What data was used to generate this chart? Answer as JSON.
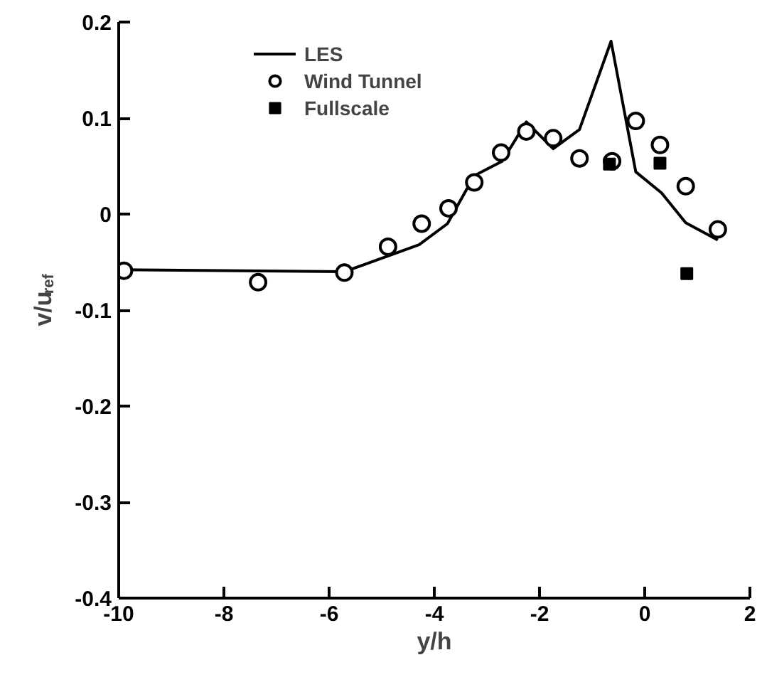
{
  "chart_data": {
    "type": "line",
    "xlabel": "y/h",
    "ylabel": "v/u$_{ref}$",
    "xlim": [
      -10,
      2
    ],
    "ylim": [
      -0.4,
      0.2
    ],
    "xticks": [
      -10,
      -8,
      -6,
      -4,
      -2,
      0,
      2
    ],
    "yticks": [
      -0.4,
      -0.3,
      -0.2,
      -0.1,
      0,
      0.1,
      0.2
    ],
    "grid": false,
    "legend": "top left",
    "series": [
      {
        "name": "LES",
        "type": "line",
        "color": "#000000",
        "line_style": "solid",
        "marker": "none",
        "x": [
          -10,
          -5.71,
          -4.29,
          -3.75,
          -3.24,
          -2.71,
          -2.25,
          -1.74,
          -1.24,
          -0.64,
          -0.17,
          0.32,
          0.78,
          1.39
        ],
        "values": [
          -0.058,
          -0.06,
          -0.032,
          -0.01,
          0.04,
          0.055,
          0.096,
          0.068,
          0.088,
          0.18,
          0.044,
          0.022,
          -0.009,
          -0.027
        ]
      },
      {
        "name": "Wind Tunnel",
        "type": "scatter",
        "color": "#000000",
        "marker": "circle",
        "x": [
          -9.9,
          -7.35,
          -5.71,
          -4.88,
          -4.24,
          -3.73,
          -3.24,
          -2.73,
          -2.25,
          -1.74,
          -1.24,
          -0.62,
          -0.17,
          0.29,
          0.78,
          1.39
        ],
        "values": [
          -0.059,
          -0.071,
          -0.061,
          -0.034,
          -0.01,
          0.006,
          0.033,
          0.064,
          0.086,
          0.079,
          0.058,
          0.055,
          0.097,
          0.072,
          0.029,
          -0.016
        ]
      },
      {
        "name": "Fullscale",
        "type": "scatter",
        "color": "#000000",
        "marker": "square",
        "x": [
          -0.67,
          0.29,
          0.8
        ],
        "values": [
          0.052,
          0.053,
          -0.062
        ]
      }
    ]
  }
}
